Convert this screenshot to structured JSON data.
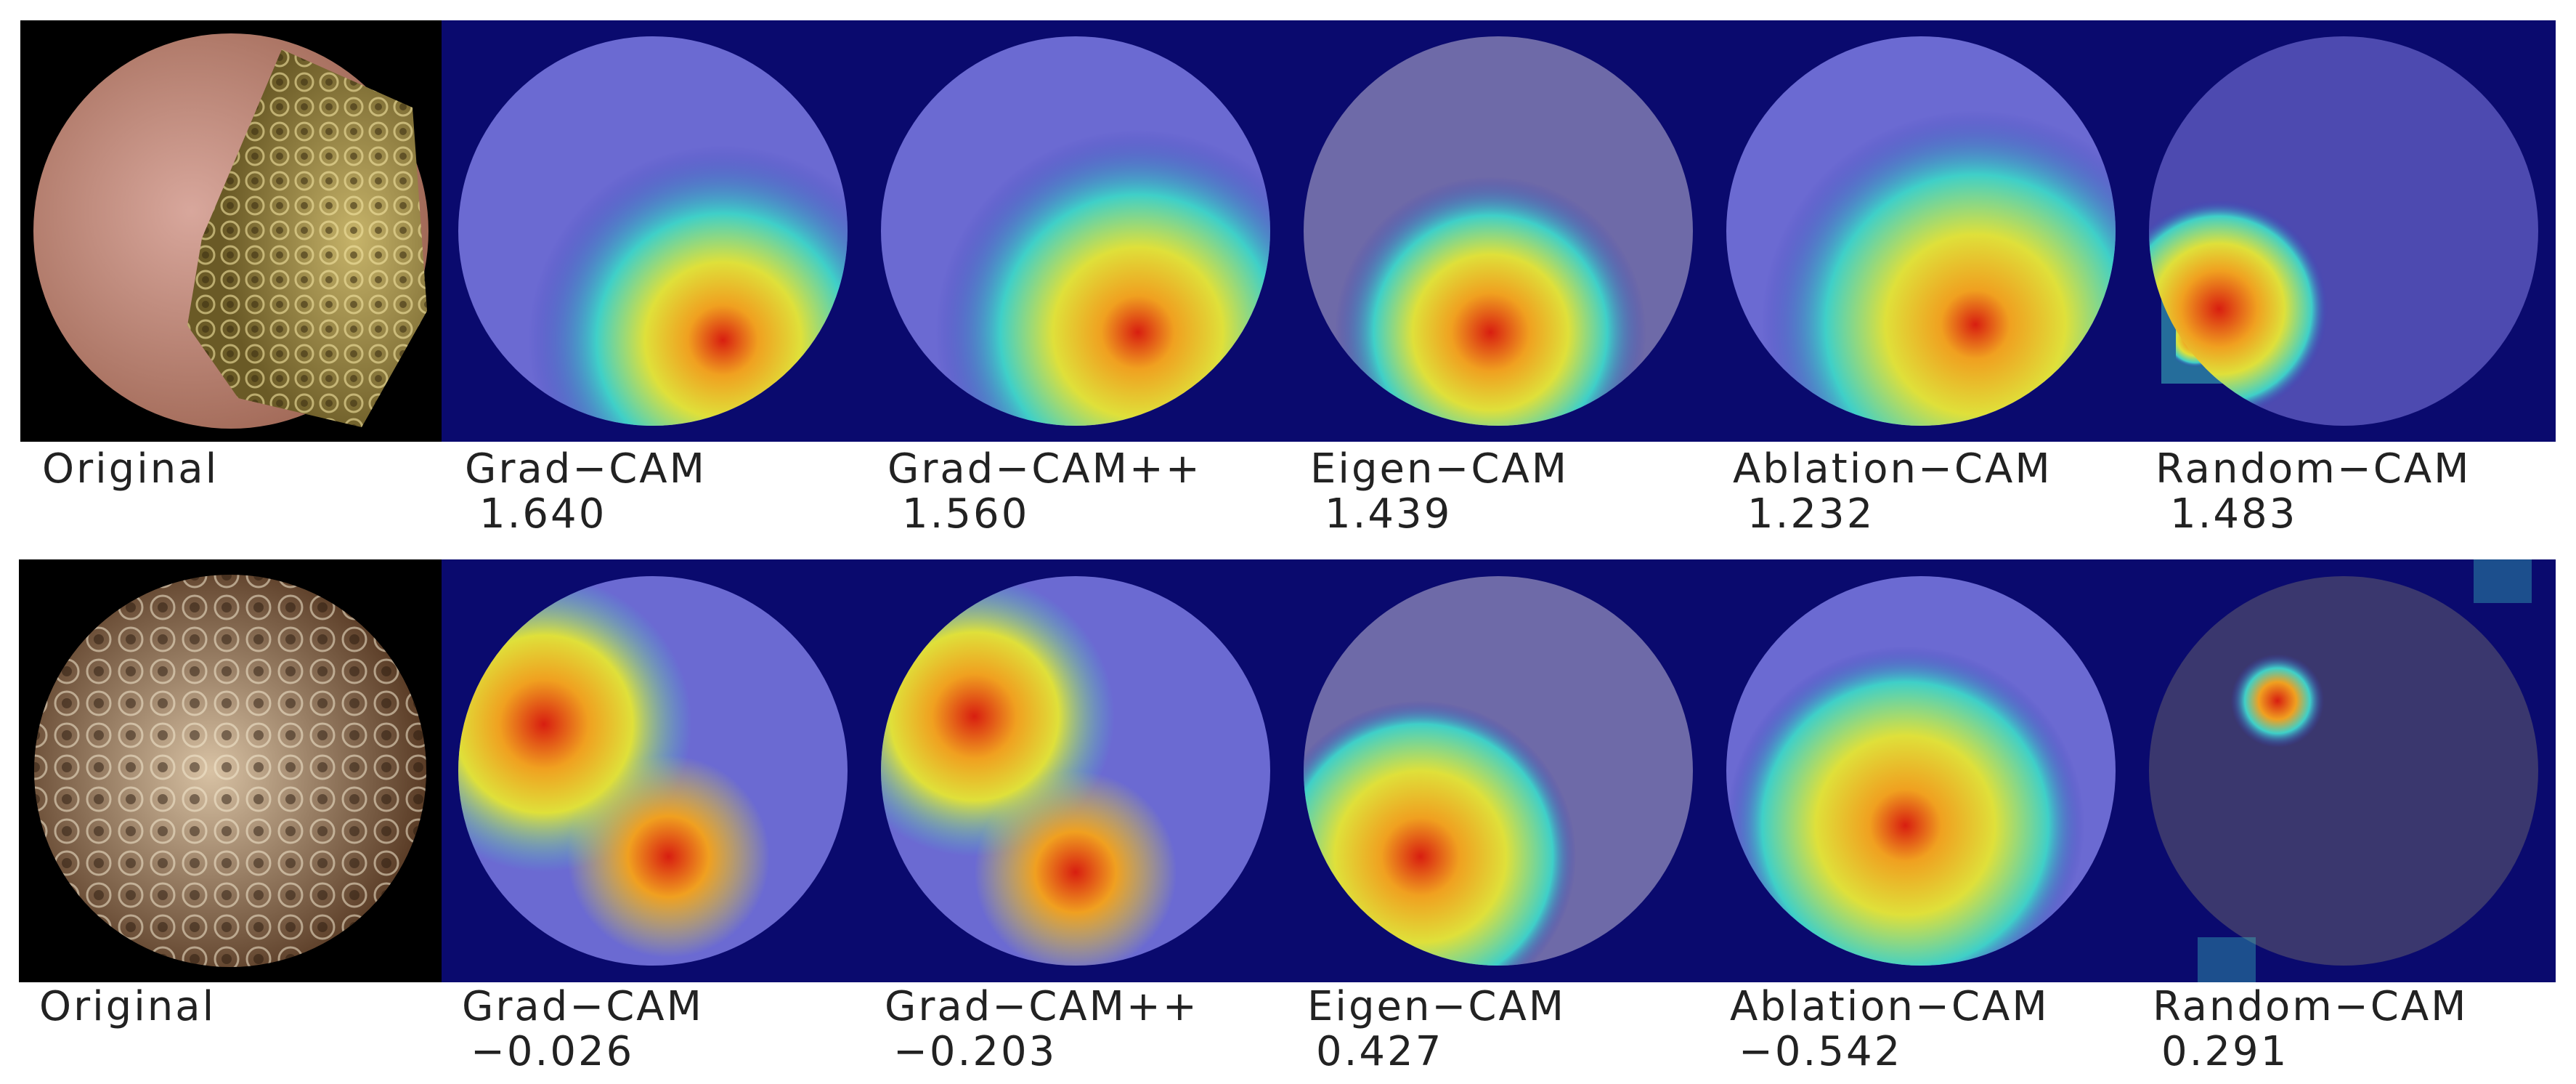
{
  "rows": [
    {
      "panels": [
        {
          "method": "Original",
          "score": ""
        },
        {
          "method": "Grad−CAM",
          "score": "1.640"
        },
        {
          "method": "Grad−CAM++",
          "score": "1.560"
        },
        {
          "method": "Eigen−CAM",
          "score": "1.439"
        },
        {
          "method": "Ablation−CAM",
          "score": "1.232"
        },
        {
          "method": "Random−CAM",
          "score": "1.483"
        }
      ]
    },
    {
      "panels": [
        {
          "method": "Original",
          "score": ""
        },
        {
          "method": "Grad−CAM",
          "score": "−0.026"
        },
        {
          "method": "Grad−CAM++",
          "score": "−0.203"
        },
        {
          "method": "Eigen−CAM",
          "score": "0.427"
        },
        {
          "method": "Ablation−CAM",
          "score": "−0.542"
        },
        {
          "method": "Random−CAM",
          "score": "0.291"
        }
      ]
    }
  ],
  "colors": {
    "background": "#ffffff",
    "text": "#222222",
    "heatmap_low": "#0a0a6e",
    "heatmap_mid": "#3fd0c8",
    "heatmap_high": "#d81e10"
  }
}
